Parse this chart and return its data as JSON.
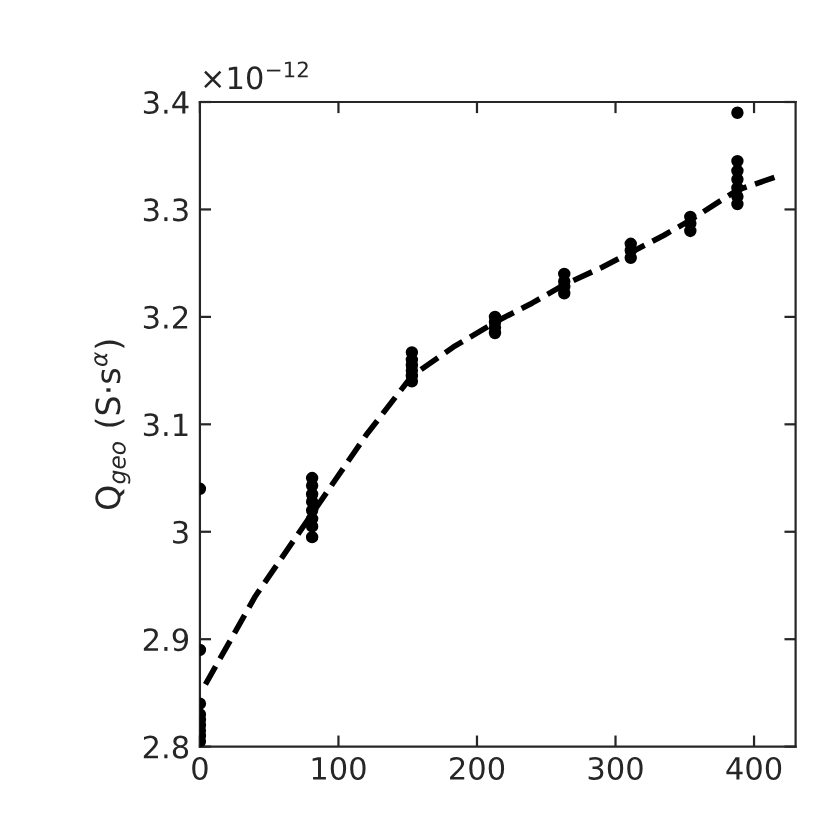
{
  "chart_data": {
    "type": "scatter",
    "ylabel": "Q$_{geo}$ (S·s$^{α}$)",
    "annotations": [
      "×10$^{−12}$"
    ],
    "xlim": [
      0,
      430
    ],
    "xticks": [
      0,
      100,
      200,
      300,
      400
    ],
    "ylim": [
      2.8,
      3.4
    ],
    "yticks": [
      2.8,
      2.9,
      3,
      3.1,
      3.2,
      3.3,
      3.4
    ],
    "grid": false,
    "marker": "circle",
    "series": [
      {
        "color": "#000000",
        "x": [
          0,
          0,
          0,
          0,
          0,
          0,
          0,
          0,
          0,
          81,
          81,
          81,
          81,
          81,
          81,
          81,
          81,
          153,
          153,
          153,
          153,
          153,
          153,
          213,
          213,
          213,
          213,
          263,
          263,
          263,
          263,
          311,
          311,
          311,
          354,
          354,
          354,
          388,
          388,
          388,
          388,
          388,
          388,
          388
        ],
        "values": [
          2.805,
          2.81,
          2.815,
          2.82,
          2.825,
          2.83,
          2.84,
          2.89,
          3.04,
          2.995,
          3.005,
          3.012,
          3.02,
          3.028,
          3.035,
          3.043,
          3.05,
          3.14,
          3.145,
          3.15,
          3.155,
          3.16,
          3.167,
          3.185,
          3.19,
          3.195,
          3.2,
          3.222,
          3.228,
          3.233,
          3.24,
          3.255,
          3.262,
          3.268,
          3.28,
          3.287,
          3.293,
          3.305,
          3.312,
          3.32,
          3.328,
          3.336,
          3.345,
          3.39
        ]
      },
      {
        "type": "line",
        "color": "#000000",
        "line_style": "dashed",
        "marker": "none",
        "x": [
          4,
          40,
          80,
          120,
          153,
          183,
          213,
          240,
          263,
          290,
          311,
          335,
          354,
          372,
          388,
          415
        ],
        "values": [
          2.858,
          2.94,
          3.015,
          3.09,
          3.145,
          3.172,
          3.195,
          3.213,
          3.23,
          3.246,
          3.26,
          3.276,
          3.29,
          3.305,
          3.318,
          3.33
        ]
      }
    ]
  }
}
